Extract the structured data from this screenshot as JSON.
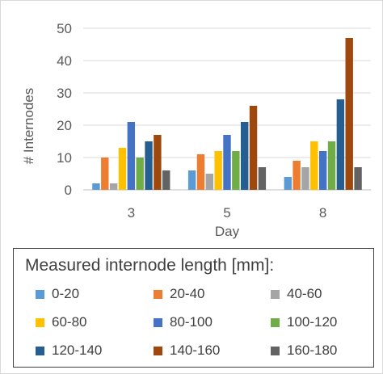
{
  "chart_data": {
    "type": "bar",
    "xlabel": "Day",
    "ylabel": "# Internodes",
    "ylim": [
      0,
      50
    ],
    "yticks": [
      0,
      10,
      20,
      30,
      40,
      50
    ],
    "categories": [
      "3",
      "5",
      "8"
    ],
    "legend_title": "Measured internode length [mm]:",
    "legend_position": "bottom",
    "grid": true,
    "series": [
      {
        "name": "0-20",
        "color": "#5B9BD5",
        "values": [
          2,
          6,
          4
        ]
      },
      {
        "name": "20-40",
        "color": "#ED7D31",
        "values": [
          10,
          11,
          9
        ]
      },
      {
        "name": "40-60",
        "color": "#A5A5A5",
        "values": [
          2,
          5,
          7
        ]
      },
      {
        "name": "60-80",
        "color": "#FFC000",
        "values": [
          13,
          12,
          15
        ]
      },
      {
        "name": "80-100",
        "color": "#4472C4",
        "values": [
          21,
          17,
          12
        ]
      },
      {
        "name": "100-120",
        "color": "#70AD47",
        "values": [
          10,
          12,
          15
        ]
      },
      {
        "name": "120-140",
        "color": "#255E91",
        "values": [
          15,
          21,
          28
        ]
      },
      {
        "name": "140-160",
        "color": "#9E480E",
        "values": [
          17,
          26,
          47
        ]
      },
      {
        "name": "160-180",
        "color": "#636363",
        "values": [
          6,
          7,
          7
        ]
      }
    ]
  }
}
